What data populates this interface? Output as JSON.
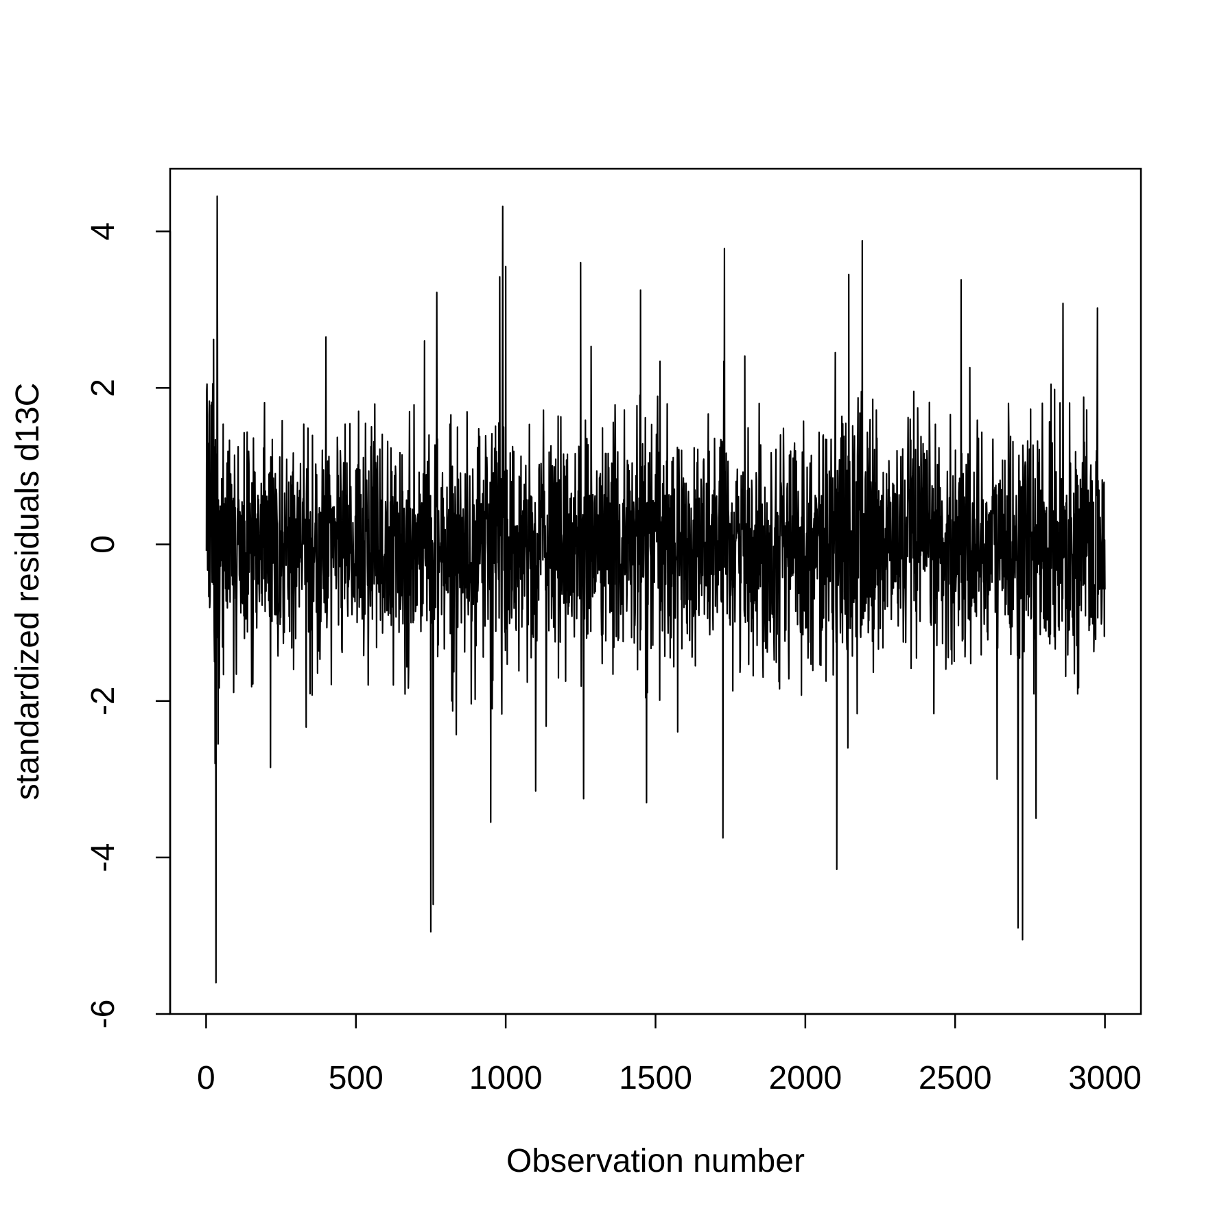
{
  "chart_data": {
    "type": "line",
    "title": "",
    "xlabel": "Observation number",
    "ylabel": "standardized residuals d13C",
    "xlim": [
      -120,
      3120
    ],
    "ylim": [
      -6,
      4.8
    ],
    "x_ticks": [
      0,
      500,
      1000,
      1500,
      2000,
      2500,
      3000
    ],
    "x_tick_labels": [
      "0",
      "500",
      "1000",
      "1500",
      "2000",
      "2500",
      "3000"
    ],
    "y_ticks": [
      -6,
      -4,
      -2,
      0,
      2,
      4
    ],
    "y_tick_labels": [
      "-6",
      "-4",
      "-2",
      "0",
      "2",
      "4"
    ],
    "grid": false,
    "legend": "none",
    "line_color": "#000000",
    "n_observations": 3000,
    "y_range_observed": [
      -5.6,
      4.45
    ],
    "series": [
      {
        "values_note": "dense residual series centred at 0 with typical spread about ±1",
        "extreme_points": [
          {
            "x": 10,
            "y": 1.65
          },
          {
            "x": 25,
            "y": 2.62
          },
          {
            "x": 30,
            "y": -2.8
          },
          {
            "x": 33,
            "y": -5.6
          },
          {
            "x": 37,
            "y": 4.45
          },
          {
            "x": 40,
            "y": -2.55
          },
          {
            "x": 215,
            "y": -2.85
          },
          {
            "x": 400,
            "y": 2.65
          },
          {
            "x": 750,
            "y": -4.95
          },
          {
            "x": 758,
            "y": -4.6
          },
          {
            "x": 770,
            "y": 3.22
          },
          {
            "x": 950,
            "y": -3.55
          },
          {
            "x": 980,
            "y": 3.42
          },
          {
            "x": 990,
            "y": 4.32
          },
          {
            "x": 1000,
            "y": 3.55
          },
          {
            "x": 1100,
            "y": -3.15
          },
          {
            "x": 1250,
            "y": 3.6
          },
          {
            "x": 1260,
            "y": -3.25
          },
          {
            "x": 1450,
            "y": 3.25
          },
          {
            "x": 1470,
            "y": -3.3
          },
          {
            "x": 1725,
            "y": -3.75
          },
          {
            "x": 1730,
            "y": 3.78
          },
          {
            "x": 2105,
            "y": -4.15
          },
          {
            "x": 2145,
            "y": 3.45
          },
          {
            "x": 2190,
            "y": 3.88
          },
          {
            "x": 2520,
            "y": 3.38
          },
          {
            "x": 2640,
            "y": -3.0
          },
          {
            "x": 2710,
            "y": -4.9
          },
          {
            "x": 2725,
            "y": -5.05
          },
          {
            "x": 2770,
            "y": -3.5
          },
          {
            "x": 2860,
            "y": 3.08
          },
          {
            "x": 2975,
            "y": 3.02
          }
        ]
      }
    ]
  }
}
